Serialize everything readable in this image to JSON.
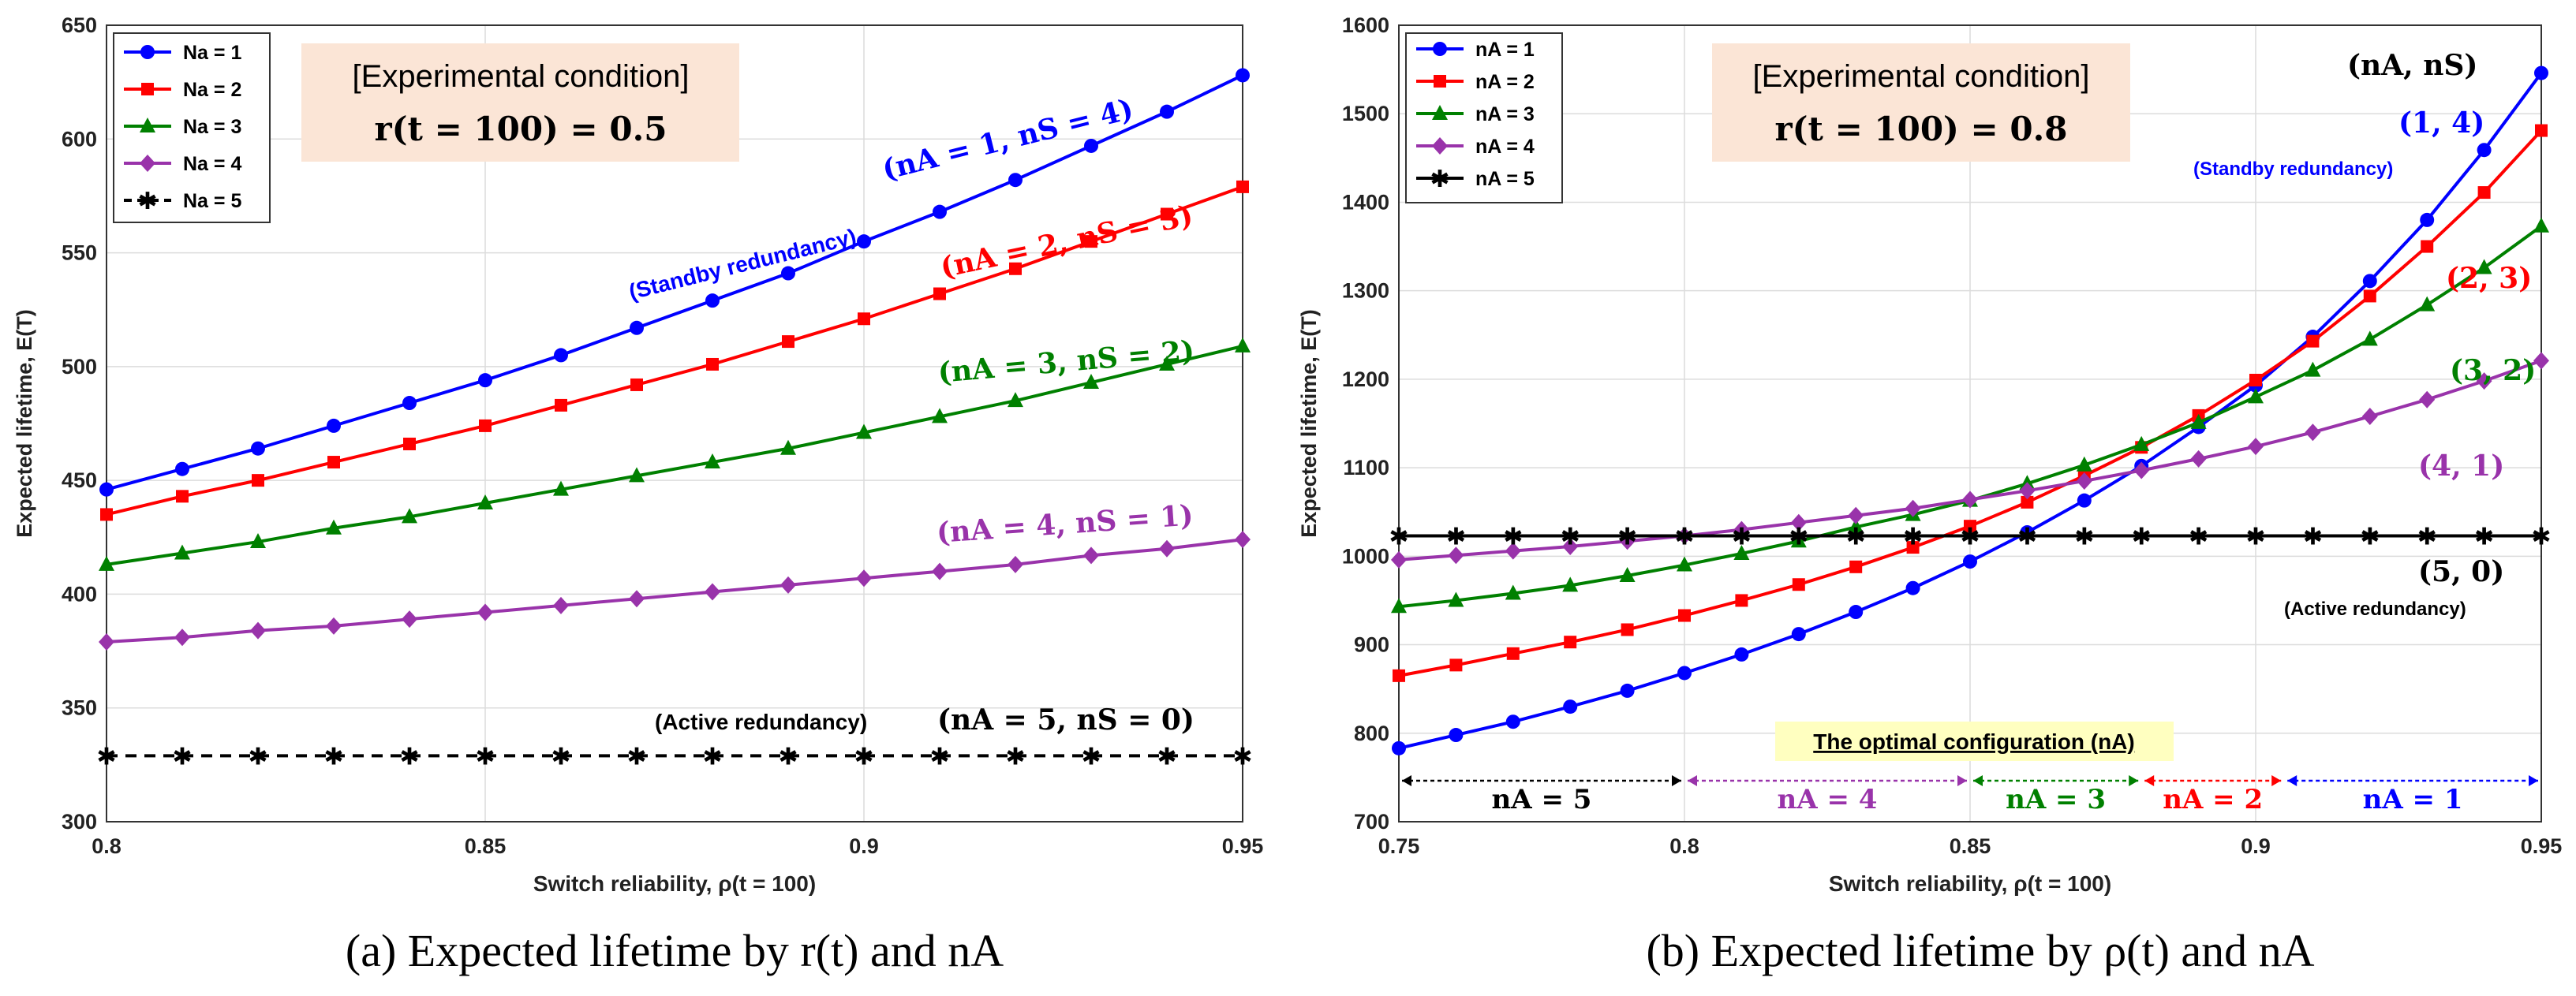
{
  "charts": [
    {
      "id": "a",
      "caption": "(a) Expected lifetime by r(t) and nA",
      "condition_header": "[Experimental condition]",
      "condition_value": "r(t = 100) = 0.5",
      "ylabel": "Expected lifetime, E(T)",
      "xlabel": "Switch reliability, ρ(t = 100)",
      "annotations": [
        {
          "label": "(Standby redundancy)",
          "color": "#0000ff"
        },
        {
          "label": "(nA = 1, nS = 4)",
          "color": "#0000ff"
        },
        {
          "label": "(nA = 2, nS = 3)",
          "color": "#ff0000"
        },
        {
          "label": "(nA = 3, nS = 2)",
          "color": "#008000"
        },
        {
          "label": "(nA = 4, nS = 1)",
          "color": "#9933aa"
        },
        {
          "label": "(Active redundancy)",
          "color": "#000000"
        },
        {
          "label": "(nA = 5, nS = 0)",
          "color": "#000000"
        }
      ]
    },
    {
      "id": "b",
      "caption": "(b) Expected lifetime by ρ(t) and nA",
      "condition_header": "[Experimental condition]",
      "condition_value": "r(t = 100) = 0.8",
      "ylabel": "Expected lifetime, E(T)",
      "xlabel": "Switch reliability, ρ(t = 100)",
      "corner_label": "(nA, nS)",
      "annotations": [
        {
          "label": "(1, 4)",
          "color": "#0000ff"
        },
        {
          "label": "(Standby redundancy)",
          "color": "#0000ff"
        },
        {
          "label": "(2, 3)",
          "color": "#ff0000"
        },
        {
          "label": "(3, 2)",
          "color": "#008000"
        },
        {
          "label": "(4, 1)",
          "color": "#9933aa"
        },
        {
          "label": "(5, 0)",
          "color": "#000000"
        },
        {
          "label": "(Active redundancy)",
          "color": "#000000"
        },
        {
          "label": "The optimal configuration (nA)",
          "color": "#000000"
        }
      ],
      "regions": [
        {
          "label": "nA = 5",
          "from": 0.75,
          "to": 0.8,
          "color": "#000000"
        },
        {
          "label": "nA = 4",
          "from": 0.8,
          "to": 0.85,
          "color": "#9933aa"
        },
        {
          "label": "nA = 3",
          "from": 0.85,
          "to": 0.88,
          "color": "#008000"
        },
        {
          "label": "nA = 2",
          "from": 0.88,
          "to": 0.905,
          "color": "#ff0000"
        },
        {
          "label": "nA = 1",
          "from": 0.905,
          "to": 0.95,
          "color": "#0000ff"
        }
      ]
    }
  ],
  "chart_data": [
    {
      "type": "line",
      "xlim": [
        0.8,
        0.95
      ],
      "ylim": [
        300,
        650
      ],
      "x_ticks": [
        0.8,
        0.85,
        0.9,
        0.95
      ],
      "x_tick_labels": [
        "0.8",
        "0.85",
        "0.9",
        "0.95"
      ],
      "y_ticks": [
        300,
        350,
        400,
        450,
        500,
        550,
        600,
        650
      ],
      "y_tick_labels": [
        "300",
        "350",
        "400",
        "450",
        "500",
        "550",
        "600",
        "650"
      ],
      "grid": true,
      "legend_position": "top-left",
      "x": [
        0.8,
        0.81,
        0.82,
        0.83,
        0.84,
        0.85,
        0.86,
        0.87,
        0.88,
        0.89,
        0.9,
        0.91,
        0.92,
        0.93,
        0.94,
        0.95
      ],
      "series": [
        {
          "name": "Na = 1",
          "color": "#0000ff",
          "marker": "circle",
          "dash": false,
          "values": [
            446,
            455,
            464,
            474,
            484,
            494,
            505,
            517,
            529,
            541,
            555,
            568,
            582,
            597,
            612,
            628
          ]
        },
        {
          "name": "Na = 2",
          "color": "#ff0000",
          "marker": "square",
          "dash": false,
          "values": [
            435,
            443,
            450,
            458,
            466,
            474,
            483,
            492,
            501,
            511,
            521,
            532,
            543,
            555,
            567,
            579
          ]
        },
        {
          "name": "Na = 3",
          "color": "#008000",
          "marker": "triangle",
          "dash": false,
          "values": [
            413,
            418,
            423,
            429,
            434,
            440,
            446,
            452,
            458,
            464,
            471,
            478,
            485,
            493,
            501,
            509
          ]
        },
        {
          "name": "Na = 4",
          "color": "#9933aa",
          "marker": "diamond",
          "dash": false,
          "values": [
            379,
            381,
            384,
            386,
            389,
            392,
            395,
            398,
            401,
            404,
            407,
            410,
            413,
            417,
            420,
            424
          ]
        },
        {
          "name": "Na = 5",
          "color": "#000000",
          "marker": "star",
          "dash": true,
          "values": [
            329,
            329,
            329,
            329,
            329,
            329,
            329,
            329,
            329,
            329,
            329,
            329,
            329,
            329,
            329,
            329
          ]
        }
      ]
    },
    {
      "type": "line",
      "xlim": [
        0.75,
        0.95
      ],
      "ylim": [
        700,
        1600
      ],
      "x_ticks": [
        0.75,
        0.8,
        0.85,
        0.9,
        0.95
      ],
      "x_tick_labels": [
        "0.75",
        "0.8",
        "0.85",
        "0.9",
        "0.95"
      ],
      "y_ticks": [
        700,
        800,
        900,
        1000,
        1100,
        1200,
        1300,
        1400,
        1500,
        1600
      ],
      "y_tick_labels": [
        "700",
        "800",
        "900",
        "1000",
        "1100",
        "1200",
        "1300",
        "1400",
        "1500",
        "1600"
      ],
      "grid": true,
      "legend_position": "top-left",
      "x": [
        0.75,
        0.76,
        0.77,
        0.78,
        0.79,
        0.8,
        0.81,
        0.82,
        0.83,
        0.84,
        0.85,
        0.86,
        0.87,
        0.88,
        0.89,
        0.9,
        0.91,
        0.92,
        0.93,
        0.94,
        0.95
      ],
      "series": [
        {
          "name": "nA = 1",
          "color": "#0000ff",
          "marker": "circle",
          "dash": false,
          "values": [
            783,
            798,
            813,
            830,
            848,
            868,
            889,
            912,
            937,
            964,
            994,
            1027,
            1063,
            1102,
            1146,
            1193,
            1248,
            1311,
            1380,
            1459,
            1546
          ]
        },
        {
          "name": "nA = 2",
          "color": "#ff0000",
          "marker": "square",
          "dash": false,
          "values": [
            865,
            877,
            890,
            903,
            917,
            933,
            950,
            968,
            988,
            1010,
            1034,
            1061,
            1091,
            1123,
            1159,
            1199,
            1243,
            1294,
            1350,
            1411,
            1481
          ]
        },
        {
          "name": "nA = 3",
          "color": "#008000",
          "marker": "triangle",
          "dash": false,
          "values": [
            943,
            950,
            958,
            967,
            978,
            990,
            1003,
            1017,
            1033,
            1047,
            1063,
            1082,
            1103,
            1126,
            1151,
            1180,
            1210,
            1245,
            1284,
            1326,
            1373
          ]
        },
        {
          "name": "nA = 4",
          "color": "#9933aa",
          "marker": "diamond",
          "dash": false,
          "values": [
            996,
            1001,
            1006,
            1011,
            1017,
            1023,
            1030,
            1038,
            1046,
            1054,
            1064,
            1074,
            1085,
            1097,
            1110,
            1124,
            1140,
            1158,
            1177,
            1198,
            1221
          ]
        },
        {
          "name": "nA = 5",
          "color": "#000000",
          "marker": "star",
          "dash": false,
          "values": [
            1023,
            1023,
            1023,
            1023,
            1023,
            1023,
            1023,
            1023,
            1023,
            1023,
            1023,
            1023,
            1023,
            1023,
            1023,
            1023,
            1023,
            1023,
            1023,
            1023,
            1023
          ]
        }
      ]
    }
  ]
}
